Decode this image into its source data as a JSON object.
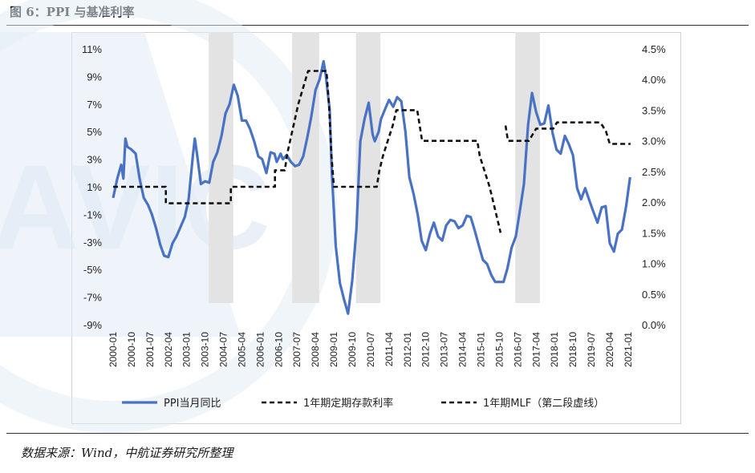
{
  "header": {
    "title": "图 6：PPI 与基准利率"
  },
  "footer": {
    "source": "数据来源：Wind，中航证券研究所整理"
  },
  "watermark": {
    "text": "AVIC"
  },
  "colors": {
    "ppi": "#4a72c4",
    "deposit": "#111111",
    "mlf": "#111111",
    "shade": "#e3e3e3",
    "watermark": "#e2ebf6"
  },
  "chart_data": {
    "type": "line",
    "title": "",
    "x_categories": [
      "2000-01",
      "2000-10",
      "2001-07",
      "2002-04",
      "2003-01",
      "2003-10",
      "2004-07",
      "2005-04",
      "2006-01",
      "2006-10",
      "2007-07",
      "2008-04",
      "2009-01",
      "2009-10",
      "2010-07",
      "2011-04",
      "2012-01",
      "2012-10",
      "2013-07",
      "2014-04",
      "2015-01",
      "2015-10",
      "2016-07",
      "2017-04",
      "2018-01",
      "2018-10",
      "2019-07",
      "2020-04",
      "2021-01"
    ],
    "y_left": {
      "ticks": [
        "11%",
        "9%",
        "7%",
        "5%",
        "3%",
        "1%",
        "-1%",
        "-3%",
        "-5%",
        "-7%",
        "-9%"
      ],
      "ylim": [
        -9,
        11
      ]
    },
    "y_right": {
      "ticks": [
        "4.5%",
        "4.0%",
        "3.5%",
        "3.0%",
        "2.5%",
        "2.0%",
        "1.5%",
        "1.0%",
        "0.5%",
        "0.0%"
      ],
      "ylim": [
        0,
        4.5
      ]
    },
    "shaded_periods": [
      {
        "start": 2003.9,
        "end": 2004.9
      },
      {
        "start": 2007.3,
        "end": 2008.4
      },
      {
        "start": 2009.9,
        "end": 2010.9
      },
      {
        "start": 2016.4,
        "end": 2017.4
      }
    ],
    "legend": [
      "PPI当月同比",
      "1年期定期存款利率",
      "1年期MLF（第二段虚线）"
    ],
    "series": [
      {
        "name": "PPI当月同比",
        "axis": "left",
        "style": "solid",
        "points": [
          [
            2000.0,
            0.2
          ],
          [
            2000.17,
            1.6
          ],
          [
            2000.33,
            2.6
          ],
          [
            2000.42,
            1.6
          ],
          [
            2000.5,
            4.5
          ],
          [
            2000.58,
            3.9
          ],
          [
            2000.75,
            3.7
          ],
          [
            2000.92,
            3.4
          ],
          [
            2001.08,
            1.6
          ],
          [
            2001.25,
            0.2
          ],
          [
            2001.42,
            -0.3
          ],
          [
            2001.58,
            -1.0
          ],
          [
            2001.75,
            -2.0
          ],
          [
            2001.92,
            -3.2
          ],
          [
            2002.08,
            -4.0
          ],
          [
            2002.25,
            -4.1
          ],
          [
            2002.42,
            -3.1
          ],
          [
            2002.58,
            -2.6
          ],
          [
            2002.75,
            -1.9
          ],
          [
            2002.92,
            -1.2
          ],
          [
            2003.08,
            0.1
          ],
          [
            2003.25,
            3.2
          ],
          [
            2003.33,
            4.5
          ],
          [
            2003.42,
            3.4
          ],
          [
            2003.58,
            1.2
          ],
          [
            2003.75,
            1.4
          ],
          [
            2003.92,
            1.3
          ],
          [
            2004.08,
            2.8
          ],
          [
            2004.25,
            3.5
          ],
          [
            2004.42,
            4.7
          ],
          [
            2004.58,
            6.3
          ],
          [
            2004.75,
            7.0
          ],
          [
            2004.92,
            8.4
          ],
          [
            2005.08,
            7.6
          ],
          [
            2005.25,
            5.8
          ],
          [
            2005.42,
            5.8
          ],
          [
            2005.58,
            5.2
          ],
          [
            2005.75,
            4.3
          ],
          [
            2005.92,
            3.2
          ],
          [
            2006.08,
            3.0
          ],
          [
            2006.25,
            2.0
          ],
          [
            2006.42,
            3.5
          ],
          [
            2006.58,
            3.4
          ],
          [
            2006.67,
            2.8
          ],
          [
            2006.83,
            3.4
          ],
          [
            2006.92,
            3.0
          ],
          [
            2007.08,
            3.3
          ],
          [
            2007.25,
            2.8
          ],
          [
            2007.42,
            2.5
          ],
          [
            2007.58,
            2.6
          ],
          [
            2007.75,
            3.2
          ],
          [
            2007.92,
            4.6
          ],
          [
            2008.08,
            6.1
          ],
          [
            2008.25,
            8.0
          ],
          [
            2008.42,
            8.8
          ],
          [
            2008.58,
            10.1
          ],
          [
            2008.67,
            9.1
          ],
          [
            2008.83,
            6.6
          ],
          [
            2008.92,
            2.0
          ],
          [
            2009.08,
            -3.3
          ],
          [
            2009.25,
            -6.0
          ],
          [
            2009.42,
            -7.2
          ],
          [
            2009.58,
            -8.2
          ],
          [
            2009.75,
            -5.8
          ],
          [
            2009.92,
            -2.1
          ],
          [
            2010.08,
            4.3
          ],
          [
            2010.25,
            5.9
          ],
          [
            2010.42,
            7.1
          ],
          [
            2010.58,
            4.8
          ],
          [
            2010.67,
            4.3
          ],
          [
            2010.83,
            5.0
          ],
          [
            2010.92,
            5.9
          ],
          [
            2011.08,
            6.6
          ],
          [
            2011.25,
            7.3
          ],
          [
            2011.42,
            6.8
          ],
          [
            2011.58,
            7.5
          ],
          [
            2011.75,
            7.2
          ],
          [
            2011.92,
            5.0
          ],
          [
            2012.08,
            1.7
          ],
          [
            2012.25,
            0.5
          ],
          [
            2012.42,
            -1.0
          ],
          [
            2012.58,
            -2.9
          ],
          [
            2012.75,
            -3.6
          ],
          [
            2012.92,
            -2.4
          ],
          [
            2013.08,
            -1.6
          ],
          [
            2013.25,
            -2.6
          ],
          [
            2013.42,
            -2.9
          ],
          [
            2013.58,
            -1.8
          ],
          [
            2013.75,
            -1.4
          ],
          [
            2013.92,
            -1.5
          ],
          [
            2014.08,
            -2.0
          ],
          [
            2014.25,
            -1.8
          ],
          [
            2014.42,
            -1.1
          ],
          [
            2014.58,
            -1.2
          ],
          [
            2014.75,
            -2.2
          ],
          [
            2014.92,
            -3.3
          ],
          [
            2015.08,
            -4.3
          ],
          [
            2015.25,
            -4.6
          ],
          [
            2015.42,
            -5.4
          ],
          [
            2015.58,
            -5.9
          ],
          [
            2015.75,
            -5.9
          ],
          [
            2015.92,
            -5.9
          ],
          [
            2016.08,
            -4.9
          ],
          [
            2016.25,
            -3.4
          ],
          [
            2016.42,
            -2.6
          ],
          [
            2016.58,
            -0.8
          ],
          [
            2016.75,
            1.2
          ],
          [
            2016.92,
            5.5
          ],
          [
            2017.08,
            7.8
          ],
          [
            2017.25,
            6.4
          ],
          [
            2017.42,
            5.5
          ],
          [
            2017.58,
            5.6
          ],
          [
            2017.75,
            6.9
          ],
          [
            2017.92,
            4.9
          ],
          [
            2018.08,
            3.7
          ],
          [
            2018.25,
            3.4
          ],
          [
            2018.42,
            4.7
          ],
          [
            2018.58,
            4.1
          ],
          [
            2018.75,
            3.3
          ],
          [
            2018.92,
            0.9
          ],
          [
            2019.08,
            0.1
          ],
          [
            2019.25,
            0.9
          ],
          [
            2019.42,
            0.0
          ],
          [
            2019.58,
            -0.8
          ],
          [
            2019.75,
            -1.6
          ],
          [
            2019.92,
            -0.5
          ],
          [
            2020.08,
            -0.4
          ],
          [
            2020.25,
            -3.1
          ],
          [
            2020.42,
            -3.7
          ],
          [
            2020.58,
            -2.4
          ],
          [
            2020.75,
            -2.1
          ],
          [
            2020.92,
            -0.4
          ],
          [
            2021.08,
            1.7
          ]
        ]
      },
      {
        "name": "1年期定期存款利率",
        "axis": "right",
        "style": "dashed",
        "points": [
          [
            2000.0,
            2.25
          ],
          [
            2002.15,
            2.25
          ],
          [
            2002.15,
            1.98
          ],
          [
            2004.8,
            1.98
          ],
          [
            2004.8,
            2.25
          ],
          [
            2006.6,
            2.25
          ],
          [
            2006.6,
            2.52
          ],
          [
            2007.0,
            2.52
          ],
          [
            2007.1,
            2.79
          ],
          [
            2007.25,
            3.06
          ],
          [
            2007.4,
            3.33
          ],
          [
            2007.55,
            3.6
          ],
          [
            2007.75,
            3.87
          ],
          [
            2007.95,
            4.14
          ],
          [
            2008.7,
            4.14
          ],
          [
            2008.8,
            3.6
          ],
          [
            2008.9,
            2.79
          ],
          [
            2009.0,
            2.25
          ],
          [
            2010.75,
            2.25
          ],
          [
            2010.85,
            2.5
          ],
          [
            2011.0,
            2.75
          ],
          [
            2011.2,
            3.0
          ],
          [
            2011.4,
            3.25
          ],
          [
            2011.55,
            3.5
          ],
          [
            2012.4,
            3.5
          ],
          [
            2012.5,
            3.25
          ],
          [
            2012.6,
            3.0
          ],
          [
            2014.85,
            3.0
          ],
          [
            2014.95,
            2.75
          ],
          [
            2015.15,
            2.5
          ],
          [
            2015.35,
            2.25
          ],
          [
            2015.5,
            2.0
          ],
          [
            2015.65,
            1.75
          ],
          [
            2015.8,
            1.5
          ]
        ]
      },
      {
        "name": "1年期MLF（第二段虚线）",
        "axis": "right",
        "style": "dashed",
        "points": [
          [
            2016.0,
            3.25
          ],
          [
            2016.1,
            3.0
          ],
          [
            2016.95,
            3.0
          ],
          [
            2017.1,
            3.1
          ],
          [
            2017.25,
            3.2
          ],
          [
            2017.95,
            3.2
          ],
          [
            2018.1,
            3.3
          ],
          [
            2019.85,
            3.3
          ],
          [
            2019.95,
            3.25
          ],
          [
            2020.1,
            3.15
          ],
          [
            2020.25,
            2.95
          ],
          [
            2021.1,
            2.95
          ]
        ]
      }
    ]
  }
}
